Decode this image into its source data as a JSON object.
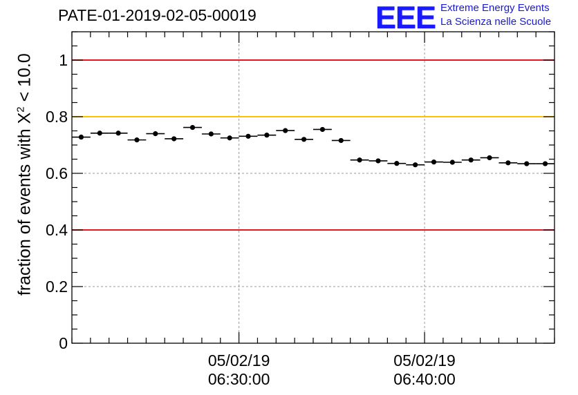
{
  "header": {
    "title": "PATE-01-2019-02-05-00019",
    "logo_text": "EEE",
    "logo_line1": "Extreme Energy Events",
    "logo_line2": "La Scienza nelle Scuole"
  },
  "colors": {
    "limit_red": "#e8141e",
    "limit_yellow": "#ffc000",
    "points": "#000000",
    "grid": "#999999",
    "logo_blue": "#1a1aff"
  },
  "chart_data": {
    "type": "scatter",
    "title": "PATE-01-2019-02-05-00019",
    "ylabel_main": "fraction of events with X",
    "ylabel_sup": "2",
    "ylabel_tail": " < 10.0",
    "xlabel": "",
    "ylim": [
      0,
      1.1
    ],
    "xlim_minutes": [
      21,
      47
    ],
    "grid": true,
    "yticks": [
      0,
      0.2,
      0.4,
      0.6,
      0.8,
      1
    ],
    "ytick_labels": [
      "0",
      "0.2",
      "0.4",
      "0.6",
      "0.8",
      "1"
    ],
    "xticks": [
      {
        "minute": 30,
        "label_date": "05/02/19",
        "label_time": "06:30:00"
      },
      {
        "minute": 40,
        "label_date": "05/02/19",
        "label_time": "06:40:00"
      }
    ],
    "hlines": [
      {
        "y": 1.0,
        "color": "#e8141e"
      },
      {
        "y": 0.8,
        "color": "#ffc000"
      },
      {
        "y": 0.4,
        "color": "#e8141e"
      }
    ],
    "series": [
      {
        "x_minutes": [
          21.5,
          22.5,
          23.5,
          24.5,
          25.5,
          26.5,
          27.5,
          28.5,
          29.5,
          30.5,
          31.5,
          32.5,
          33.5,
          34.5,
          35.5,
          36.5,
          37.5,
          38.5,
          39.5,
          40.5,
          41.5,
          42.5,
          43.5,
          44.5,
          45.5,
          46.5
        ],
        "y": [
          0.728,
          0.742,
          0.742,
          0.718,
          0.74,
          0.722,
          0.762,
          0.739,
          0.725,
          0.731,
          0.735,
          0.751,
          0.72,
          0.755,
          0.716,
          0.647,
          0.644,
          0.635,
          0.63,
          0.64,
          0.639,
          0.647,
          0.655,
          0.637,
          0.634,
          0.634
        ],
        "xerr": 0.5,
        "yerr": 0.008
      }
    ]
  }
}
